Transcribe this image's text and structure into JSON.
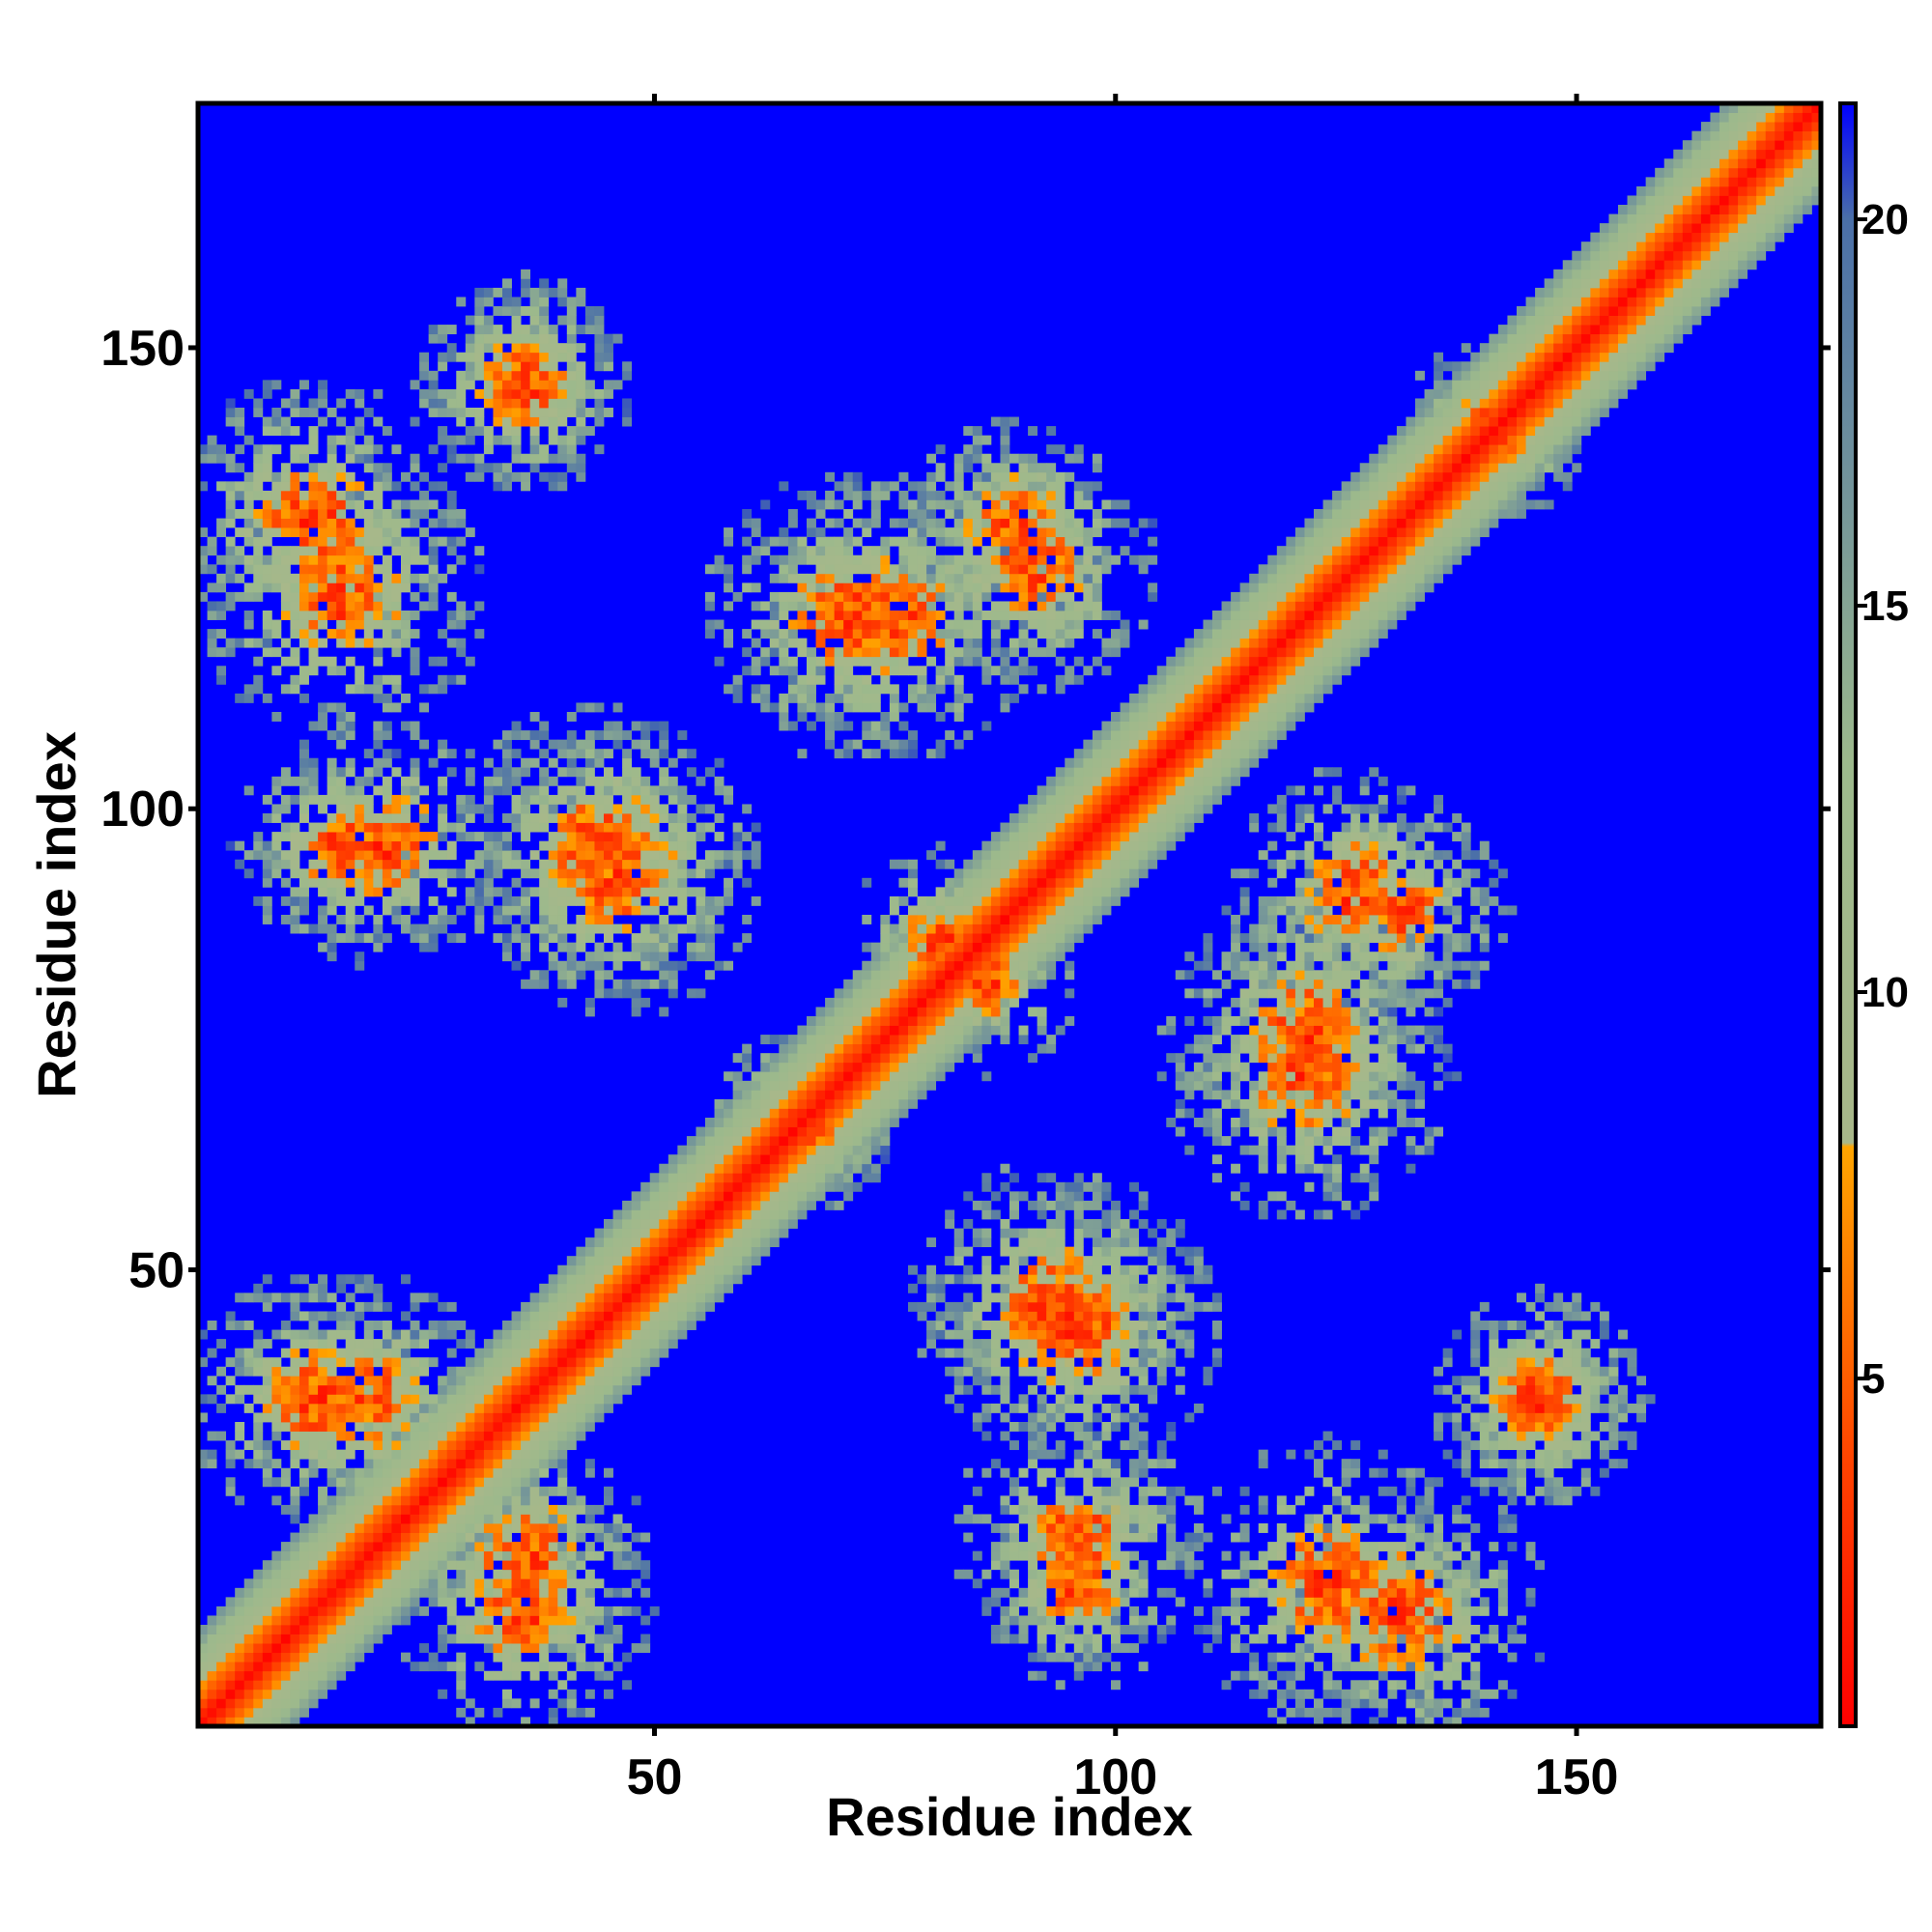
{
  "chart_data": {
    "type": "heatmap",
    "title": "",
    "xlabel": "Residue index",
    "ylabel": "Residue index",
    "n_residues": 176,
    "xlim": [
      1,
      176
    ],
    "ylim": [
      1,
      176
    ],
    "x_ticks": [
      50,
      100,
      150
    ],
    "y_ticks": [
      50,
      100,
      150
    ],
    "x_tick_labels": [
      "50",
      "100",
      "150"
    ],
    "y_tick_labels": [
      "50",
      "100",
      "150"
    ],
    "grid": false,
    "colorbar": {
      "placement": "right",
      "range": [
        0.5,
        21.5
      ],
      "ticks": [
        5,
        10,
        15,
        20
      ],
      "tick_labels": [
        "5",
        "10",
        "15",
        "20"
      ],
      "stops": [
        {
          "value": 0.5,
          "color": "#ff0000"
        },
        {
          "value": 4.0,
          "color": "#ff4500"
        },
        {
          "value": 8.0,
          "color": "#ffa500"
        },
        {
          "value": 8.05,
          "color": "#a8b88a"
        },
        {
          "value": 13.0,
          "color": "#9cb98c"
        },
        {
          "value": 20.0,
          "color": "#4a6fa8"
        },
        {
          "value": 21.5,
          "color": "#0000ff"
        }
      ]
    },
    "colors": {
      "background": "#0000ff",
      "contact_close": "#ff0000",
      "contact_mid": "#ffa500",
      "contact_far": "#9cb98c"
    },
    "diagonal_band": {
      "center_value": 1,
      "width_residues": 10
    },
    "contact_clusters": [
      {
        "i": 12,
        "j": 130,
        "spread": 8
      },
      {
        "i": 35,
        "j": 145,
        "spread": 6
      },
      {
        "i": 15,
        "j": 95,
        "spread": 6
      },
      {
        "i": 43,
        "j": 95,
        "spread": 8
      },
      {
        "i": 70,
        "j": 120,
        "spread": 8
      },
      {
        "i": 88,
        "j": 130,
        "spread": 6
      },
      {
        "i": 80,
        "j": 85,
        "spread": 5
      },
      {
        "i": 65,
        "j": 65,
        "spread": 5
      },
      {
        "i": 12,
        "j": 35,
        "spread": 7
      },
      {
        "i": 35,
        "j": 18,
        "spread": 7
      },
      {
        "i": 92,
        "j": 45,
        "spread": 8
      },
      {
        "i": 95,
        "j": 20,
        "spread": 7
      },
      {
        "i": 122,
        "j": 15,
        "spread": 8
      },
      {
        "i": 145,
        "j": 35,
        "spread": 6
      },
      {
        "i": 120,
        "j": 75,
        "spread": 8
      },
      {
        "i": 125,
        "j": 90,
        "spread": 7
      },
      {
        "i": 140,
        "j": 140,
        "spread": 5
      }
    ]
  }
}
